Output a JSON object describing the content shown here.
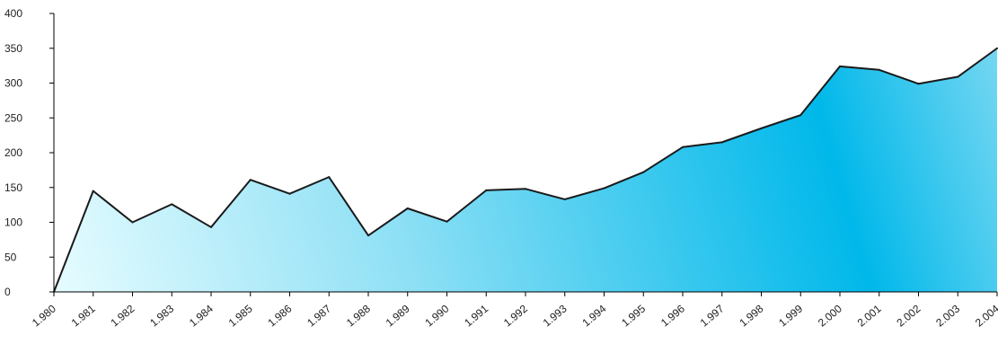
{
  "chart_data": {
    "type": "area",
    "categories": [
      "1.980",
      "1.981",
      "1.982",
      "1.983",
      "1.984",
      "1.985",
      "1.986",
      "1.987",
      "1.988",
      "1.989",
      "1.990",
      "1.991",
      "1.992",
      "1.993",
      "1.994",
      "1.995",
      "1.996",
      "1.997",
      "1.998",
      "1.999",
      "2.000",
      "2.001",
      "2.002",
      "2.003",
      "2.004"
    ],
    "series": [
      {
        "values": [
          0,
          145,
          100,
          126,
          93,
          161,
          141,
          165,
          81,
          120,
          101,
          146,
          148,
          133,
          149,
          172,
          208,
          215,
          235,
          254,
          324,
          319,
          299,
          309,
          350
        ]
      }
    ],
    "ylim": [
      0,
      400
    ],
    "yticks": [
      "0",
      "50",
      "100",
      "150",
      "200",
      "250",
      "300",
      "350",
      "400"
    ],
    "grid": false,
    "legend": "none",
    "colors": {
      "fill_light": "#e6fcff",
      "fill_mid": "#8fe0f5",
      "fill_dark": "#00b8ea",
      "line": "#1a1a1a",
      "axis": "#000000"
    }
  }
}
